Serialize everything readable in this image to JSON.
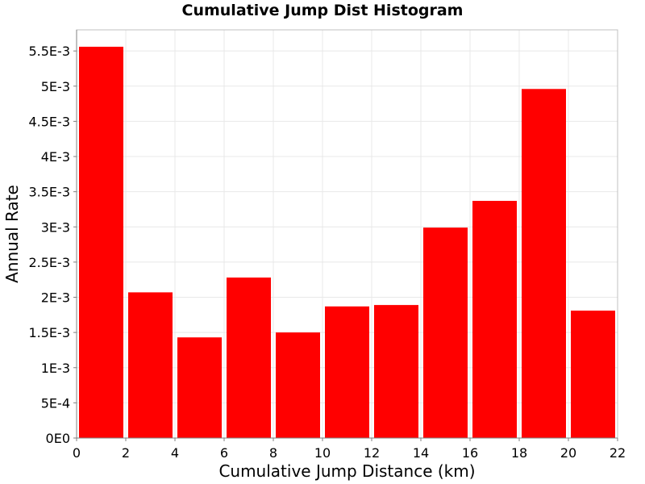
{
  "chart_data": {
    "type": "bar",
    "title": "Cumulative Jump Dist Histogram",
    "xlabel": "Cumulative Jump Distance (km)",
    "ylabel": "Annual Rate",
    "bin_edges": [
      0,
      2,
      4,
      6,
      8,
      10,
      12,
      14,
      16,
      18,
      20,
      22
    ],
    "values": [
      0.00556,
      0.00207,
      0.00143,
      0.00228,
      0.0015,
      0.00187,
      0.00189,
      0.00299,
      0.00337,
      0.00496,
      0.00181
    ],
    "xlim": [
      0,
      22
    ],
    "ylim": [
      0,
      0.0058
    ],
    "x_ticks": [
      "0",
      "2",
      "4",
      "6",
      "8",
      "10",
      "12",
      "14",
      "16",
      "18",
      "20",
      "22"
    ],
    "y_ticks": [
      "0E0",
      "5E-4",
      "1E-3",
      "1.5E-3",
      "2E-3",
      "2.5E-3",
      "3E-3",
      "3.5E-3",
      "4E-3",
      "4.5E-3",
      "5E-3",
      "5.5E-3"
    ],
    "bar_color": "#ff0000",
    "grid": true,
    "legend": "none"
  }
}
